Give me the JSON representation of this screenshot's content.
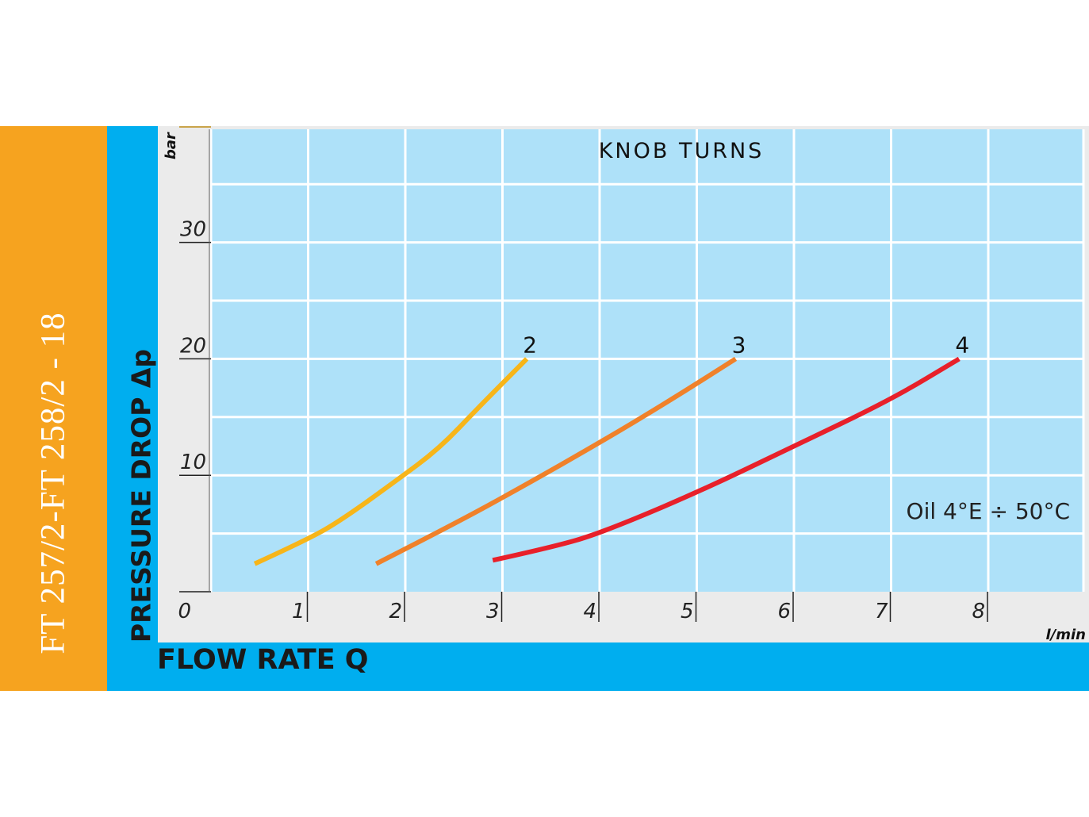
{
  "side_title": "FT 257/2-FT 258/2 - 18",
  "chart_data": {
    "type": "line",
    "title": "KNOB TURNS",
    "xlabel": "FLOW RATE Q",
    "ylabel": "PRESSURE DROP Δp",
    "x_unit": "l/min",
    "y_unit": "bar",
    "xlim": [
      0,
      9
    ],
    "ylim": [
      0,
      40
    ],
    "x_ticks": [
      "0",
      "1",
      "2",
      "3",
      "4",
      "5",
      "6",
      "7",
      "8"
    ],
    "y_ticks": [
      "10",
      "20",
      "30"
    ],
    "grid": true,
    "annotation": "Oil 4°E ÷ 50°C",
    "series": [
      {
        "name": "2",
        "color": "#f7b519",
        "x": [
          0.45,
          1.0,
          1.35,
          1.9,
          2.35,
          2.75,
          3.25
        ],
        "y": [
          2.4,
          4.5,
          6.2,
          9.5,
          12.3,
          15.8,
          20.0
        ]
      },
      {
        "name": "3",
        "color": "#f0812a",
        "x": [
          1.7,
          2.5,
          3.2,
          4.0,
          4.7,
          5.4
        ],
        "y": [
          2.4,
          5.8,
          9.0,
          12.8,
          16.3,
          20.0
        ]
      },
      {
        "name": "4",
        "color": "#e8202a",
        "x": [
          2.9,
          3.5,
          4.0,
          5.0,
          6.0,
          7.0,
          7.7
        ],
        "y": [
          2.7,
          3.8,
          5.0,
          8.5,
          12.5,
          16.5,
          20.0
        ]
      }
    ]
  }
}
